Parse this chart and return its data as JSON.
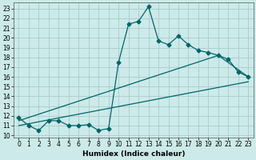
{
  "xlabel": "Humidex (Indice chaleur)",
  "background_color": "#cceaea",
  "grid_color": "#aacccc",
  "line_color": "#006666",
  "x_ticks": [
    0,
    1,
    2,
    3,
    4,
    5,
    6,
    7,
    8,
    9,
    10,
    11,
    12,
    13,
    14,
    15,
    16,
    17,
    18,
    19,
    20,
    21,
    22,
    23
  ],
  "y_ticks": [
    10,
    11,
    12,
    13,
    14,
    15,
    16,
    17,
    18,
    19,
    20,
    21,
    22,
    23
  ],
  "ylim": [
    9.8,
    23.6
  ],
  "xlim": [
    -0.5,
    23.5
  ],
  "curve1_x": [
    0,
    1,
    2,
    3,
    4,
    5,
    6,
    7,
    8,
    9,
    10,
    11,
    12,
    13,
    14,
    15,
    16,
    17,
    18,
    19,
    20,
    21,
    22,
    23
  ],
  "curve1_y": [
    11.8,
    11.0,
    10.5,
    11.5,
    11.5,
    11.0,
    11.0,
    11.1,
    10.5,
    10.7,
    17.5,
    21.4,
    21.7,
    23.2,
    19.7,
    19.3,
    20.2,
    19.3,
    18.7,
    18.5,
    18.2,
    17.8,
    16.5,
    16.0
  ],
  "line1_x": [
    0,
    23
  ],
  "line1_y": [
    11.0,
    15.5
  ],
  "line2_x": [
    0,
    20,
    23
  ],
  "line2_y": [
    11.5,
    18.2,
    16.0
  ],
  "marker_size": 2.5,
  "linewidth": 0.9,
  "tick_fontsize": 5.5,
  "xlabel_fontsize": 6.5
}
